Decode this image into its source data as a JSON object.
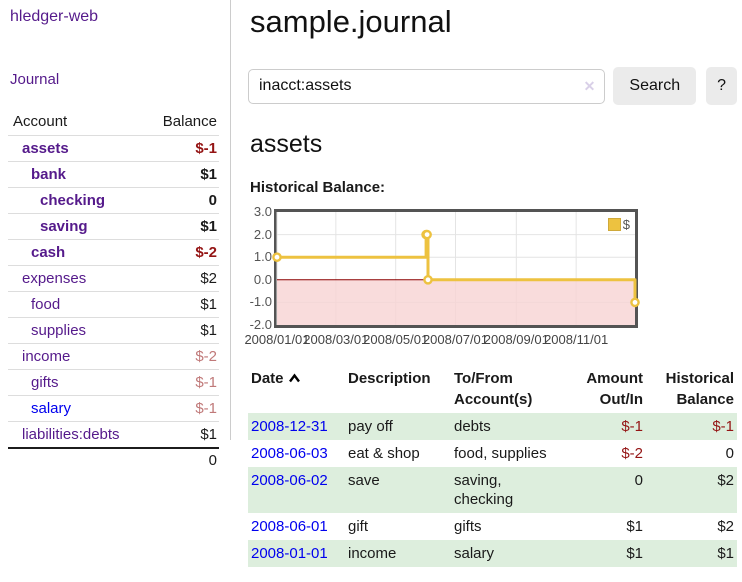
{
  "brand": "hledger-web",
  "nav": {
    "journal": "Journal"
  },
  "sidebar": {
    "headers": {
      "account": "Account",
      "balance": "Balance"
    },
    "accounts": [
      {
        "name": "assets",
        "balance": "$-1",
        "depth": 1,
        "bold": true,
        "balance_style": "neg-strong"
      },
      {
        "name": "bank",
        "balance": "$1",
        "depth": 2,
        "bold": true,
        "balance_style": ""
      },
      {
        "name": "checking",
        "balance": "0",
        "depth": 3,
        "bold": true,
        "balance_style": ""
      },
      {
        "name": "saving",
        "balance": "$1",
        "depth": 3,
        "bold": true,
        "balance_style": ""
      },
      {
        "name": "cash",
        "balance": "$-2",
        "depth": 2,
        "bold": true,
        "balance_style": "neg-strong"
      },
      {
        "name": "expenses",
        "balance": "$2",
        "depth": 1,
        "bold": false,
        "balance_style": ""
      },
      {
        "name": "food",
        "balance": "$1",
        "depth": 2,
        "bold": false,
        "balance_style": ""
      },
      {
        "name": "supplies",
        "balance": "$1",
        "depth": 2,
        "bold": false,
        "balance_style": ""
      },
      {
        "name": "income",
        "balance": "$-2",
        "depth": 1,
        "bold": false,
        "balance_style": "neg-soft"
      },
      {
        "name": "gifts",
        "balance": "$-1",
        "depth": 2,
        "bold": false,
        "balance_style": "neg-soft"
      },
      {
        "name": "salary",
        "balance": "$-1",
        "depth": 2,
        "bold": false,
        "balance_style": "neg-soft",
        "link_color": "blue"
      },
      {
        "name": "liabilities:debts",
        "balance": "$1",
        "depth": 1,
        "bold": false,
        "balance_style": ""
      }
    ],
    "total": "0"
  },
  "header": {
    "title": "sample.journal"
  },
  "search": {
    "value": "inacct:assets",
    "clear_icon": "✕",
    "search_button": "Search",
    "help_button": "?"
  },
  "account_page": {
    "heading": "assets",
    "chart_title": "Historical Balance:"
  },
  "chart_data": {
    "type": "line",
    "title": "Historical Balance",
    "legend": [
      {
        "label": "$",
        "color": "#EDC240"
      }
    ],
    "x_start": "2008-01-01",
    "x_end": "2008-12-31",
    "ylim": [
      -2,
      3
    ],
    "y_ticks": [
      "3.0",
      "2.0",
      "1.0",
      "0.0",
      "-1.0",
      "-2.0"
    ],
    "x_ticks": [
      {
        "label": "2008/01/01",
        "date": "2008-01-01"
      },
      {
        "label": "2008/03/01",
        "date": "2008-03-01"
      },
      {
        "label": "2008/05/01",
        "date": "2008-05-01"
      },
      {
        "label": "2008/07/01",
        "date": "2008-07-01"
      },
      {
        "label": "2008/09/01",
        "date": "2008-09-01"
      },
      {
        "label": "2008/11/01",
        "date": "2008-11-01"
      }
    ],
    "series": [
      {
        "name": "$",
        "color": "#EDC240",
        "step": true,
        "points": [
          {
            "date": "2008-01-01",
            "value": 1
          },
          {
            "date": "2008-06-01",
            "value": 2
          },
          {
            "date": "2008-06-02",
            "value": 2
          },
          {
            "date": "2008-06-03",
            "value": 0
          },
          {
            "date": "2008-12-31",
            "value": -1
          }
        ]
      }
    ],
    "colors": {
      "negative_region": "#f8d3d3",
      "zero_line": "#8b0000",
      "grid": "#e4e4e4",
      "border": "#545454"
    }
  },
  "register": {
    "headers": {
      "date": "Date",
      "description": "Description",
      "accounts": "To/From Account(s)",
      "amount": "Amount Out/In",
      "balance": "Historical Balance"
    },
    "rows": [
      {
        "date": "2008-12-31",
        "description": "pay off",
        "accounts": "debts",
        "amount": "$-1",
        "amount_negative": true,
        "balance": "$-1",
        "balance_negative": true
      },
      {
        "date": "2008-06-03",
        "description": "eat & shop",
        "accounts": "food, supplies",
        "amount": "$-2",
        "amount_negative": true,
        "balance": "0",
        "balance_negative": false
      },
      {
        "date": "2008-06-02",
        "description": "save",
        "accounts": "saving, checking",
        "amount": "0",
        "amount_negative": false,
        "balance": "$2",
        "balance_negative": false
      },
      {
        "date": "2008-06-01",
        "description": "gift",
        "accounts": "gifts",
        "amount": "$1",
        "amount_negative": false,
        "balance": "$2",
        "balance_negative": false
      },
      {
        "date": "2008-01-01",
        "description": "income",
        "accounts": "salary",
        "amount": "$1",
        "amount_negative": false,
        "balance": "$1",
        "balance_negative": false
      }
    ]
  }
}
